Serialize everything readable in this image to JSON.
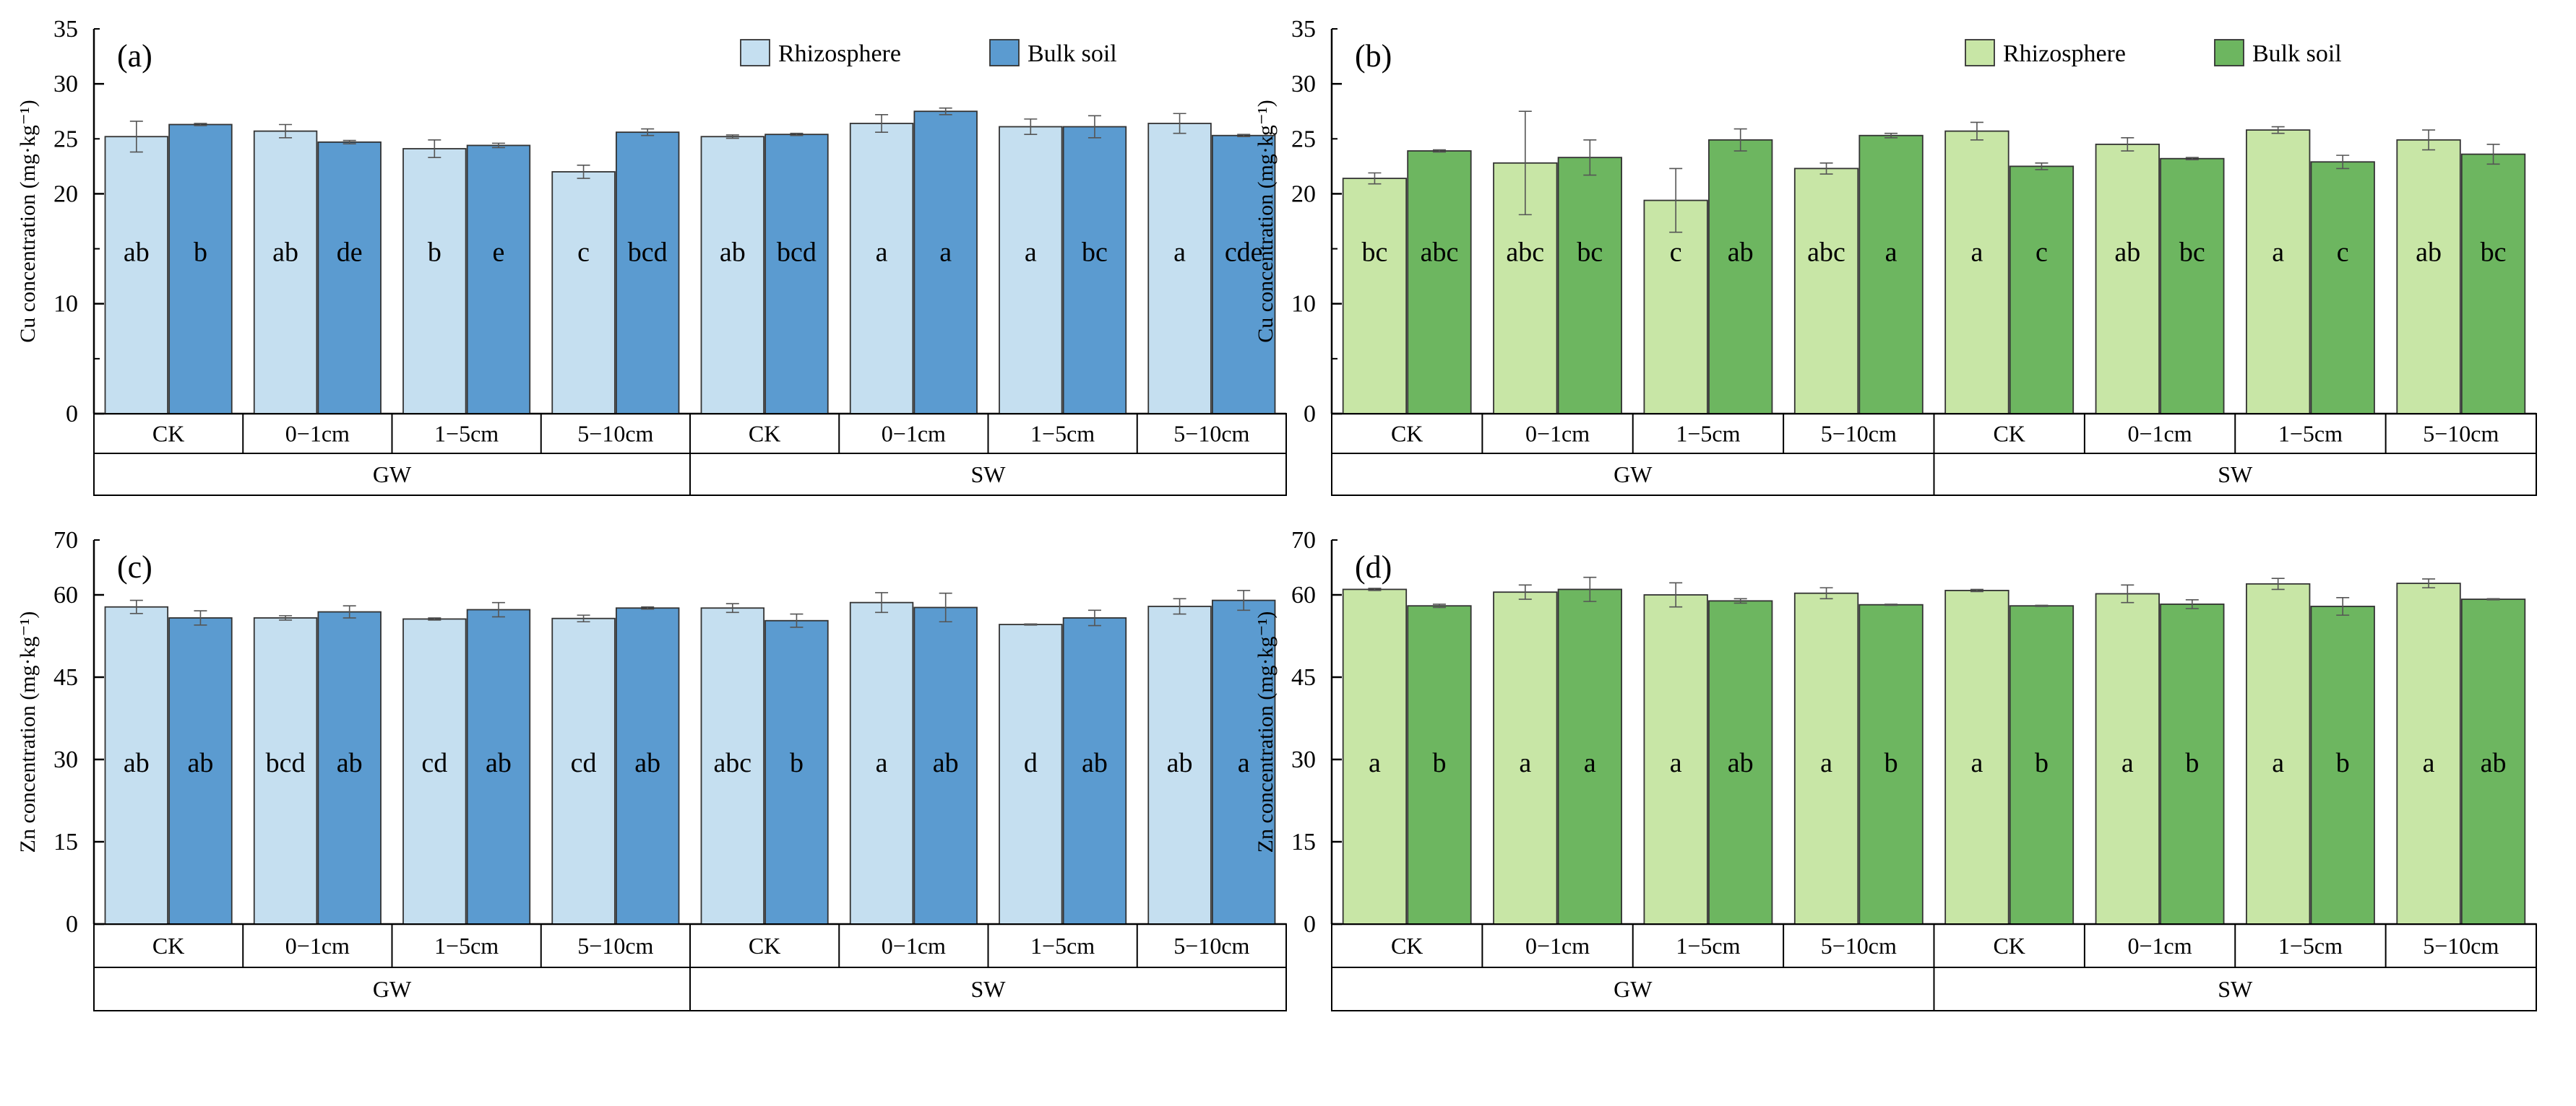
{
  "chart_data": [
    {
      "type": "bar",
      "panel_label": "(a)",
      "ylabel": "Cu concentration (mg·kg⁻¹)",
      "ylim": [
        0,
        35
      ],
      "yticks": [
        0,
        10,
        20,
        30
      ],
      "ytick_labels": [
        "0",
        "10",
        "20",
        "30"
      ],
      "minor_ticks": [
        5,
        15,
        25,
        35
      ],
      "minor_tick_labels": [
        "",
        "",
        "25",
        "35"
      ],
      "categories": [
        "CK",
        "0−1cm",
        "1−5cm",
        "5−10cm",
        "CK",
        "0−1cm",
        "1−5cm",
        "5−10cm"
      ],
      "groups": [
        {
          "name": "GW",
          "span": 4
        },
        {
          "name": "SW",
          "span": 4
        }
      ],
      "legend_position": "top-right",
      "series": [
        {
          "name": "Rhizosphere",
          "color": "#c5dff0",
          "values": [
            25.2,
            25.7,
            24.1,
            22.0,
            25.2,
            26.4,
            26.1,
            26.4
          ],
          "errors": [
            1.4,
            0.6,
            0.8,
            0.6,
            0.15,
            0.8,
            0.7,
            0.9
          ],
          "letters": [
            "ab",
            "ab",
            "b",
            "c",
            "ab",
            "a",
            "a",
            "a"
          ]
        },
        {
          "name": "Bulk soil",
          "color": "#5b9bd0",
          "values": [
            26.3,
            24.7,
            24.4,
            25.6,
            25.4,
            27.5,
            26.1,
            25.3
          ],
          "errors": [
            0.1,
            0.15,
            0.2,
            0.3,
            0.1,
            0.3,
            1.0,
            0.1
          ],
          "letters": [
            "b",
            "de",
            "e",
            "bcd",
            "bcd",
            "a",
            "bc",
            "cde"
          ]
        }
      ]
    },
    {
      "type": "bar",
      "panel_label": "(b)",
      "ylabel": "Cu concentration (mg·kg⁻¹)",
      "ylim": [
        0,
        35
      ],
      "yticks": [
        0,
        10,
        20,
        30
      ],
      "ytick_labels": [
        "0",
        "10",
        "20",
        "30"
      ],
      "minor_ticks": [
        5,
        15,
        25,
        35
      ],
      "minor_tick_labels": [
        "",
        "",
        "25",
        "35"
      ],
      "categories": [
        "CK",
        "0−1cm",
        "1−5cm",
        "5−10cm",
        "CK",
        "0−1cm",
        "1−5cm",
        "5−10cm"
      ],
      "groups": [
        {
          "name": "GW",
          "span": 4
        },
        {
          "name": "SW",
          "span": 4
        }
      ],
      "legend_position": "top-right",
      "series": [
        {
          "name": "Rhizosphere",
          "color": "#c8e6a6",
          "values": [
            21.4,
            22.8,
            19.4,
            22.3,
            25.7,
            24.5,
            25.8,
            24.9
          ],
          "errors": [
            0.5,
            4.7,
            2.9,
            0.5,
            0.8,
            0.6,
            0.3,
            0.9
          ],
          "letters": [
            "bc",
            "abc",
            "c",
            "abc",
            "a",
            "ab",
            "a",
            "ab"
          ]
        },
        {
          "name": "Bulk soil",
          "color": "#6db660",
          "values": [
            23.9,
            23.3,
            24.9,
            25.3,
            22.5,
            23.2,
            22.9,
            23.6
          ],
          "errors": [
            0.1,
            1.6,
            1.0,
            0.2,
            0.3,
            0.1,
            0.6,
            0.9
          ],
          "letters": [
            "abc",
            "bc",
            "ab",
            "a",
            "c",
            "bc",
            "c",
            "bc"
          ]
        }
      ]
    },
    {
      "type": "bar",
      "panel_label": "(c)",
      "ylabel": "Zn concentration (mg·kg⁻¹)",
      "ylim": [
        0,
        70
      ],
      "yticks": [
        0,
        15,
        30,
        45,
        60
      ],
      "ytick_labels": [
        "0",
        "15",
        "30",
        "45",
        "60"
      ],
      "minor_ticks": [
        70
      ],
      "minor_tick_labels": [
        "70"
      ],
      "categories": [
        "CK",
        "0−1cm",
        "1−5cm",
        "5−10cm",
        "CK",
        "0−1cm",
        "1−5cm",
        "5−10cm"
      ],
      "groups": [
        {
          "name": "GW",
          "span": 4
        },
        {
          "name": "SW",
          "span": 4
        }
      ],
      "legend_position": "none",
      "series": [
        {
          "name": "Rhizosphere",
          "color": "#c5dff0",
          "values": [
            57.8,
            55.8,
            55.6,
            55.7,
            57.6,
            58.6,
            54.6,
            57.9
          ],
          "errors": [
            1.2,
            0.4,
            0.2,
            0.6,
            0.8,
            1.8,
            0.1,
            1.4
          ],
          "letters": [
            "ab",
            "bcd",
            "cd",
            "cd",
            "abc",
            "a",
            "d",
            "ab"
          ]
        },
        {
          "name": "Bulk soil",
          "color": "#5b9bd0",
          "values": [
            55.8,
            56.9,
            57.3,
            57.6,
            55.3,
            57.7,
            55.8,
            59.0
          ],
          "errors": [
            1.3,
            1.1,
            1.3,
            0.2,
            1.2,
            2.6,
            1.4,
            1.8
          ],
          "letters": [
            "ab",
            "ab",
            "ab",
            "ab",
            "b",
            "ab",
            "ab",
            "a"
          ]
        }
      ]
    },
    {
      "type": "bar",
      "panel_label": "(d)",
      "ylabel": "Zn concentration (mg·kg⁻¹)",
      "ylim": [
        0,
        70
      ],
      "yticks": [
        0,
        15,
        30,
        45,
        60
      ],
      "ytick_labels": [
        "0",
        "15",
        "30",
        "45",
        "60"
      ],
      "minor_ticks": [
        70
      ],
      "minor_tick_labels": [
        "70"
      ],
      "categories": [
        "CK",
        "0−1cm",
        "1−5cm",
        "5−10cm",
        "CK",
        "0−1cm",
        "1−5cm",
        "5−10cm"
      ],
      "groups": [
        {
          "name": "GW",
          "span": 4
        },
        {
          "name": "SW",
          "span": 4
        }
      ],
      "legend_position": "none",
      "series": [
        {
          "name": "Rhizosphere",
          "color": "#c8e6a6",
          "values": [
            61.0,
            60.5,
            60.0,
            60.3,
            60.8,
            60.2,
            62.0,
            62.1
          ],
          "errors": [
            0.2,
            1.3,
            2.2,
            1.0,
            0.2,
            1.6,
            1.0,
            0.8
          ],
          "letters": [
            "a",
            "a",
            "a",
            "a",
            "a",
            "a",
            "a",
            "a"
          ]
        },
        {
          "name": "Bulk soil",
          "color": "#6db660",
          "values": [
            58.0,
            61.0,
            58.9,
            58.2,
            58.0,
            58.3,
            57.9,
            59.2
          ],
          "errors": [
            0.3,
            2.2,
            0.4,
            0.1,
            0.1,
            0.8,
            1.6,
            0.1
          ],
          "letters": [
            "b",
            "a",
            "ab",
            "b",
            "b",
            "b",
            "b",
            "ab"
          ]
        }
      ]
    }
  ]
}
